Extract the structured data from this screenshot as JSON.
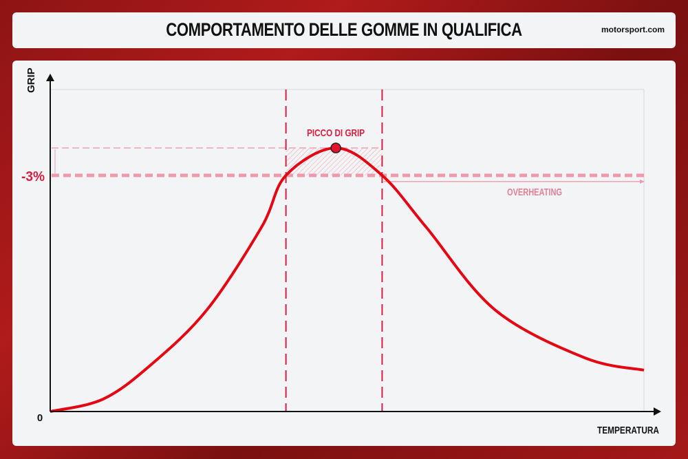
{
  "header": {
    "title": "COMPORTAMENTO DELLE GOMME IN QUALIFICA",
    "logo": "motorsport.com"
  },
  "chart_data": {
    "type": "line",
    "xlabel": "TEMPERATURA",
    "ylabel": "GRIP",
    "y_ticks": [
      "0",
      "-3%"
    ],
    "grid": false,
    "annotations": {
      "peak": "PICCO DI GRIP",
      "overheating": "OVERHEATING"
    },
    "colors": {
      "curve": "#e30613",
      "accent": "#d81e3f",
      "threshold": "#f0a0b0",
      "peak_marker": "#e8112d"
    },
    "series": [
      {
        "points": [
          [
            0,
            0
          ],
          [
            8.9,
            4.7
          ],
          [
            17,
            17.8
          ],
          [
            26.4,
            38.6
          ],
          [
            35.6,
            70
          ],
          [
            39.7,
            89.6
          ],
          [
            48.1,
            100
          ],
          [
            55.9,
            89.6
          ],
          [
            63.3,
            70
          ],
          [
            74.9,
            38.6
          ],
          [
            90,
            20.4
          ],
          [
            100,
            15.7
          ]
        ]
      }
    ],
    "peak": [
      48.1,
      100
    ],
    "threshold_level": 89.6,
    "window": [
      39.7,
      55.9
    ],
    "xlim": [
      0,
      100
    ],
    "ylim": [
      0,
      100
    ]
  }
}
